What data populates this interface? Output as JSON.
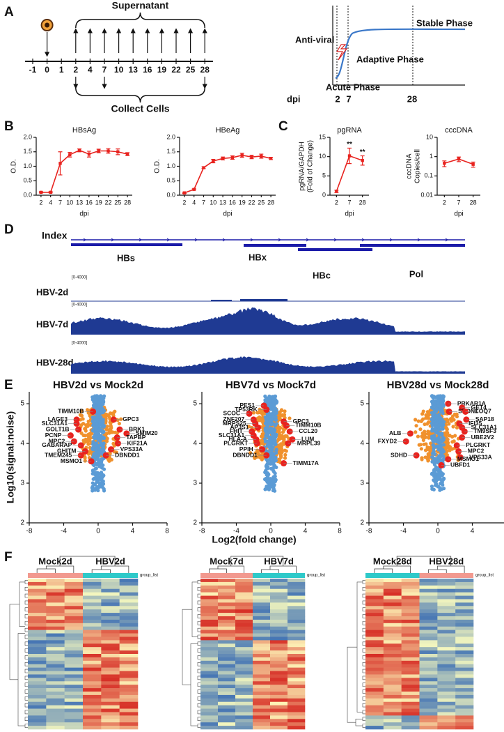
{
  "panels": [
    "A",
    "B",
    "C",
    "D",
    "E",
    "F"
  ],
  "timeline": {
    "top_label": "Supernatant",
    "bottom_label": "Collect Cells",
    "days": [
      -1,
      0,
      1,
      2,
      4,
      7,
      10,
      13,
      16,
      19,
      22,
      25,
      28
    ]
  },
  "phase_diagram": {
    "antiviral": "Anti-viral",
    "stable": "Stable Phase",
    "adaptive": "Adaptive Phase",
    "acute": "Acute Phase",
    "axis_label": "dpi",
    "ticks": [
      2,
      7,
      28
    ]
  },
  "chart_data": [
    {
      "type": "line",
      "title": "HBsAg",
      "xlabel": "dpi",
      "ylabel": "O.D.",
      "color": "#e8231f",
      "categories": [
        2,
        4,
        7,
        10,
        13,
        16,
        19,
        22,
        25,
        28
      ],
      "values": [
        0.1,
        0.1,
        1.1,
        1.4,
        1.55,
        1.42,
        1.53,
        1.53,
        1.5,
        1.42
      ],
      "errors": [
        0.02,
        0.02,
        0.4,
        0.08,
        0.05,
        0.1,
        0.06,
        0.08,
        0.1,
        0.05
      ],
      "ylim": [
        0,
        2
      ],
      "yticks": [
        {
          "value": 0,
          "label": "0.0"
        },
        {
          "value": 0.5,
          "label": "0.5"
        },
        {
          "value": 1,
          "label": "1.0"
        },
        {
          "value": 1.5,
          "label": "1.5"
        },
        {
          "value": 2,
          "label": "2.0"
        }
      ]
    },
    {
      "type": "line",
      "title": "HBeAg",
      "xlabel": "dpi",
      "ylabel": "O.D.",
      "color": "#e8231f",
      "categories": [
        2,
        4,
        7,
        10,
        13,
        16,
        19,
        22,
        25,
        28
      ],
      "values": [
        0.08,
        0.2,
        0.95,
        1.18,
        1.27,
        1.3,
        1.38,
        1.32,
        1.35,
        1.27
      ],
      "errors": [
        0.02,
        0.02,
        0.03,
        0.06,
        0.05,
        0.06,
        0.07,
        0.06,
        0.07,
        0.04
      ],
      "ylim": [
        0,
        2
      ],
      "yticks": [
        {
          "value": 0,
          "label": "0.0"
        },
        {
          "value": 0.5,
          "label": "0.5"
        },
        {
          "value": 1,
          "label": "1.0"
        },
        {
          "value": 1.5,
          "label": "1.5"
        },
        {
          "value": 2,
          "label": "2.0"
        }
      ]
    },
    {
      "type": "line",
      "title": "pgRNA",
      "xlabel": "dpi",
      "ylabel": [
        "pgRNA/GAPDH",
        "(Fold of Change)"
      ],
      "color": "#e8231f",
      "categories": [
        2,
        7,
        28
      ],
      "values": [
        1,
        10.2,
        9
      ],
      "errors": [
        0.3,
        2,
        1.2
      ],
      "ylim": [
        0,
        15
      ],
      "yticks": [
        0,
        5,
        10,
        15
      ],
      "annotations": [
        {
          "text": "**",
          "at": 7
        },
        {
          "text": "**",
          "at": 28
        }
      ]
    },
    {
      "type": "line",
      "title": "cccDNA",
      "xlabel": "dpi",
      "ylabel": [
        "cccDNA",
        "Copies/cell"
      ],
      "color": "#e8231f",
      "log_scale": true,
      "categories": [
        2,
        7,
        28
      ],
      "values": [
        0.45,
        0.75,
        0.4
      ],
      "errors": [
        0.15,
        0.2,
        0.12
      ],
      "ylim": [
        0.01,
        10
      ],
      "yticks": [
        0.01,
        0.1,
        1,
        10
      ]
    },
    {
      "type": "scatter",
      "title": "HBV2d vs Mock2d",
      "color": "#e8231f",
      "genes": [
        "LAGE3",
        "TIMM10B",
        "SLC31A1",
        "GOLT1B",
        "PCNP",
        "MPC2",
        "GABARAP",
        "GHITM",
        "TMEM245",
        "MSMO1",
        "GPC3",
        "BRK1",
        "SMIM20",
        "TAPBP",
        "KIF21A",
        "VPS33A",
        "DBNDD1"
      ],
      "x": [
        -2.5,
        -0.6,
        -2.5,
        -2.3,
        -3.2,
        -2.8,
        -2.0,
        -1.5,
        -2.0,
        -0.8,
        1.8,
        2.5,
        3.3,
        2.2,
        2.3,
        1.5,
        0.9
      ],
      "y": [
        4.6,
        4.8,
        4.5,
        4.35,
        4.2,
        4.05,
        3.95,
        3.8,
        3.7,
        3.55,
        4.6,
        4.35,
        4.25,
        4.15,
        4.0,
        3.85,
        3.7
      ],
      "xlim": [
        -8,
        8
      ],
      "xticks": [
        -8,
        -4,
        0,
        4,
        8
      ],
      "ylim": [
        2,
        5.3
      ],
      "yticks": [
        2,
        3,
        4,
        5
      ]
    },
    {
      "type": "scatter",
      "title": "HBV7d vs Mock7d",
      "color": "#e8231f",
      "genes": [
        "PES1",
        "TP53RK",
        "SCOC",
        "ZNF207",
        "MRPS25",
        "AP3S1",
        "FHIT",
        "SLC31A1",
        "HLA-A",
        "PLGRKT",
        "PPIH",
        "DBNDD1",
        "GPC3",
        "TIMM10B",
        "CCL20",
        "LUM",
        "MRPL39",
        "TIMM17A"
      ],
      "x": [
        -0.8,
        -0.5,
        -2.5,
        -2.0,
        -1.8,
        -1.5,
        -2.2,
        -2.0,
        -1.7,
        -1.6,
        -1.0,
        -0.5,
        1.5,
        1.8,
        2.2,
        2.5,
        2.0,
        1.5
      ],
      "y": [
        4.95,
        4.85,
        4.75,
        4.6,
        4.5,
        4.4,
        4.3,
        4.2,
        4.1,
        4.0,
        3.85,
        3.7,
        4.55,
        4.45,
        4.3,
        4.1,
        4.0,
        3.5
      ],
      "xlim": [
        -8,
        8
      ],
      "xticks": [
        -8,
        -4,
        0,
        4,
        8
      ],
      "ylim": [
        2,
        5.3
      ],
      "yticks": [
        2,
        3,
        4,
        5
      ]
    },
    {
      "type": "scatter",
      "title": "HBV28d vs Mock28d",
      "color": "#e8231f",
      "genes": [
        "PRKAR1A",
        "GET4",
        "SPON1",
        "COQ7",
        "SAP18",
        "IFI35",
        "SLC31A1",
        "TM9SF3",
        "UBE2V2",
        "PLGRKT",
        "MPC2",
        "VPS33A",
        "MSMO1",
        "UBFD1",
        "ALB",
        "FXYD2",
        "SDHD"
      ],
      "x": [
        1.2,
        2.8,
        1.3,
        3.2,
        3.3,
        2.5,
        2.8,
        3.1,
        2.8,
        2.2,
        2.4,
        2.6,
        1.2,
        0.4,
        -3.2,
        -3.7,
        -2.5
      ],
      "y": [
        5.0,
        4.9,
        4.8,
        4.8,
        4.6,
        4.5,
        4.4,
        4.3,
        4.15,
        3.95,
        3.8,
        3.65,
        3.6,
        3.45,
        4.25,
        4.05,
        3.7
      ],
      "xlim": [
        -8,
        8
      ],
      "xticks": [
        -8,
        -4,
        0,
        4,
        8
      ],
      "ylim": [
        2,
        5.3
      ],
      "yticks": [
        2,
        3,
        4,
        5
      ]
    }
  ],
  "volcano_axes": {
    "xlabel": "Log2(fold change)",
    "ylabel": "Log10(signal:noise)"
  },
  "tracks": {
    "index_label": "Index",
    "genes": [
      "HBs",
      "HBx",
      "HBc",
      "Pol"
    ],
    "samples": [
      "HBV-2d",
      "HBV-7d",
      "HBV-28d"
    ],
    "range_label": "[0-4000]"
  },
  "heatmaps": [
    {
      "groups": [
        "Mock2d",
        "HBV2d"
      ],
      "legend": "group_list"
    },
    {
      "groups": [
        "Mock7d",
        "HBV7d"
      ],
      "legend": "group_list"
    },
    {
      "groups": [
        "Mock28d",
        "HBV28d"
      ],
      "legend": "group_list"
    }
  ]
}
